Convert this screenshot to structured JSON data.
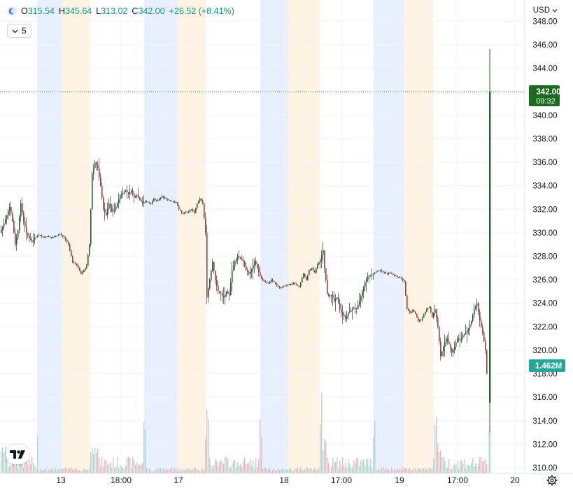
{
  "legend": {
    "open_label": "O",
    "open": "315.54",
    "high_label": "H",
    "high": "345.64",
    "low_label": "L",
    "low": "313.02",
    "close_label": "C",
    "close": "342.00",
    "change": "+26.52 (+8.41%)",
    "collapse_count": "5"
  },
  "currency": "USD",
  "badges": {
    "price": "342.00",
    "countdown": "09:32",
    "volume": "1.462M"
  },
  "colors": {
    "up": "#1b6b1e",
    "down": "#b2333a",
    "vol_up": "#a8dcd2",
    "vol_down": "#f4b6bd",
    "premarket": "#e8f0fe",
    "afterhours": "#fff3e3",
    "price_badge": "#1b6b1e",
    "volume_badge": "#26a69a"
  },
  "chart_data": {
    "type": "candlestick",
    "y_range": [
      310,
      348
    ],
    "y_ticks": [
      310,
      312,
      314,
      316,
      318,
      320,
      322,
      324,
      326,
      328,
      330,
      332,
      334,
      336,
      338,
      340,
      344,
      346,
      348
    ],
    "x_ticks": [
      "13",
      "18:00",
      "17",
      "18",
      "17:00",
      "19",
      "17:00",
      "20"
    ],
    "last_price": 342.0,
    "volume_last": "1.462M",
    "path": [
      [
        0,
        330
      ],
      [
        6,
        330.8
      ],
      [
        10,
        331.5
      ],
      [
        14,
        332.2
      ],
      [
        18,
        331
      ],
      [
        22,
        329
      ],
      [
        26,
        330.2
      ],
      [
        30,
        332.5
      ],
      [
        34,
        331
      ],
      [
        38,
        330
      ],
      [
        42,
        329.5
      ],
      [
        46,
        329.2
      ],
      [
        50,
        329.6
      ],
      [
        56,
        329.8
      ],
      [
        62,
        329.6
      ],
      [
        68,
        329.7
      ],
      [
        74,
        329.6
      ],
      [
        80,
        329.7
      ],
      [
        86,
        329.9
      ],
      [
        92,
        329.6
      ],
      [
        98,
        329
      ],
      [
        104,
        327.5
      ],
      [
        108,
        327.4
      ],
      [
        112,
        327
      ],
      [
        116,
        326.5
      ],
      [
        120,
        326.8
      ],
      [
        124,
        327.2
      ],
      [
        128,
        329
      ],
      [
        132,
        335
      ],
      [
        136,
        336
      ],
      [
        140,
        335.5
      ],
      [
        144,
        334
      ],
      [
        148,
        332
      ],
      [
        152,
        331.5
      ],
      [
        156,
        332.5
      ],
      [
        160,
        331.8
      ],
      [
        164,
        332
      ],
      [
        168,
        332.5
      ],
      [
        172,
        333.2
      ],
      [
        176,
        333.4
      ],
      [
        180,
        333.6
      ],
      [
        184,
        333.3
      ],
      [
        188,
        333.6
      ],
      [
        192,
        333
      ],
      [
        196,
        333.2
      ],
      [
        200,
        332.8
      ],
      [
        204,
        332.5
      ],
      [
        208,
        332.7
      ],
      [
        212,
        332.6
      ],
      [
        216,
        332.5
      ],
      [
        220,
        332.9
      ],
      [
        224,
        332.7
      ],
      [
        228,
        332.9
      ],
      [
        232,
        333.1
      ],
      [
        236,
        332.9
      ],
      [
        240,
        332.8
      ],
      [
        244,
        332.7
      ],
      [
        248,
        332.6
      ],
      [
        252,
        332.6
      ],
      [
        256,
        332
      ],
      [
        262,
        331.6
      ],
      [
        266,
        331.8
      ],
      [
        270,
        331.8
      ],
      [
        274,
        332.0
      ],
      [
        278,
        331.7
      ],
      [
        282,
        332.5
      ],
      [
        286,
        332.9
      ],
      [
        290,
        332.5
      ],
      [
        294,
        330
      ],
      [
        296,
        324.5
      ],
      [
        300,
        326
      ],
      [
        304,
        327.5
      ],
      [
        308,
        326
      ],
      [
        312,
        325
      ],
      [
        316,
        324.8
      ],
      [
        320,
        324.5
      ],
      [
        324,
        325
      ],
      [
        328,
        324.7
      ],
      [
        332,
        326.8
      ],
      [
        336,
        327.6
      ],
      [
        340,
        328
      ],
      [
        344,
        327.8
      ],
      [
        348,
        327.5
      ],
      [
        352,
        326.8
      ],
      [
        356,
        326.5
      ],
      [
        360,
        326.9
      ],
      [
        364,
        327.6
      ],
      [
        368,
        327
      ],
      [
        372,
        326.3
      ],
      [
        376,
        325.9
      ],
      [
        380,
        325.8
      ],
      [
        384,
        325.7
      ],
      [
        388,
        326
      ],
      [
        392,
        325.8
      ],
      [
        396,
        325.5
      ],
      [
        400,
        325.3
      ],
      [
        404,
        325.4
      ],
      [
        408,
        325.5
      ],
      [
        412,
        325.6
      ],
      [
        420,
        325.7
      ],
      [
        428,
        325.4
      ],
      [
        434,
        326.5
      ],
      [
        438,
        326
      ],
      [
        442,
        326.8
      ],
      [
        446,
        327
      ],
      [
        450,
        326.6
      ],
      [
        454,
        327.3
      ],
      [
        458,
        327.7
      ],
      [
        462,
        328.5
      ],
      [
        464,
        327
      ],
      [
        466,
        326
      ],
      [
        468,
        324.8
      ],
      [
        470,
        324.6
      ],
      [
        474,
        324.7
      ],
      [
        478,
        324.2
      ],
      [
        482,
        324.5
      ],
      [
        486,
        323.5
      ],
      [
        490,
        323
      ],
      [
        494,
        322.7
      ],
      [
        498,
        323.2
      ],
      [
        502,
        323.4
      ],
      [
        506,
        323.6
      ],
      [
        510,
        323.5
      ],
      [
        514,
        324.2
      ],
      [
        518,
        325
      ],
      [
        522,
        325.8
      ],
      [
        526,
        326.3
      ],
      [
        530,
        326.4
      ],
      [
        534,
        326.5
      ],
      [
        538,
        326.7
      ],
      [
        542,
        326.8
      ],
      [
        546,
        326.7
      ],
      [
        550,
        326.6
      ],
      [
        554,
        326.5
      ],
      [
        558,
        326.6
      ],
      [
        562,
        326.4
      ],
      [
        566,
        326.3
      ],
      [
        570,
        326.2
      ],
      [
        574,
        326.1
      ],
      [
        578,
        325.8
      ],
      [
        582,
        323.5
      ],
      [
        586,
        323.2
      ],
      [
        590,
        323.4
      ],
      [
        594,
        323.1
      ],
      [
        598,
        322.5
      ],
      [
        602,
        322.6
      ],
      [
        606,
        323
      ],
      [
        610,
        323.5
      ],
      [
        614,
        323.7
      ],
      [
        618,
        322.8
      ],
      [
        622,
        323.5
      ],
      [
        626,
        322
      ],
      [
        630,
        319.5
      ],
      [
        634,
        320.3
      ],
      [
        638,
        321
      ],
      [
        642,
        320.5
      ],
      [
        646,
        319.8
      ],
      [
        650,
        320.3
      ],
      [
        654,
        321
      ],
      [
        658,
        320.8
      ],
      [
        662,
        321.3
      ],
      [
        666,
        321.5
      ],
      [
        670,
        321.9
      ],
      [
        674,
        322.5
      ],
      [
        678,
        323.5
      ],
      [
        682,
        324
      ],
      [
        686,
        322.5
      ],
      [
        690,
        321.5
      ],
      [
        694,
        320
      ],
      [
        698,
        316
      ]
    ]
  }
}
